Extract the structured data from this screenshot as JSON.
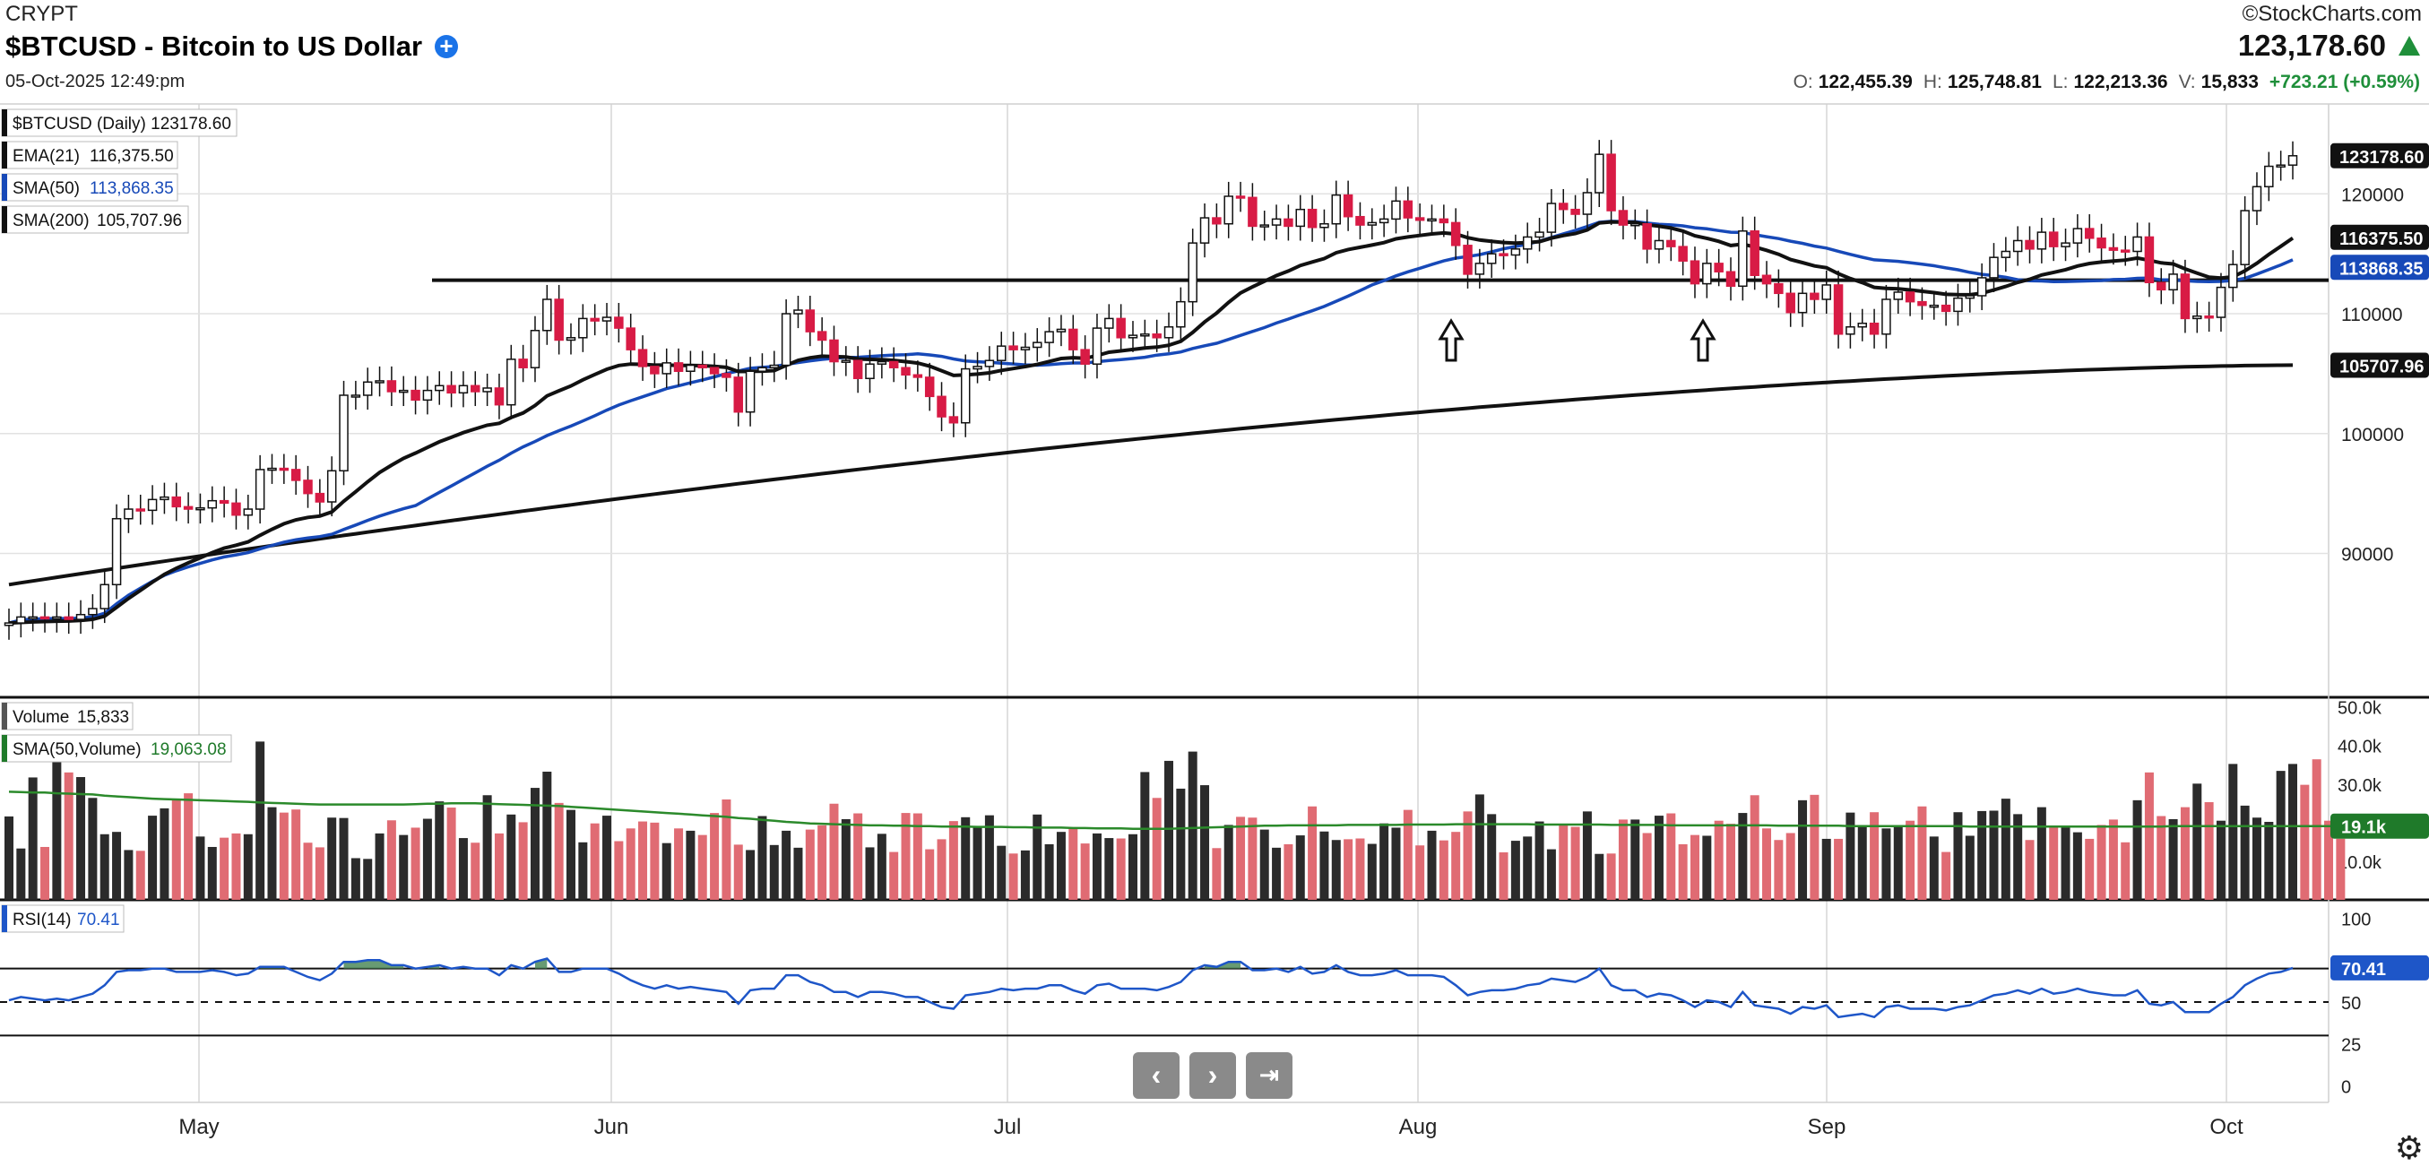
{
  "header": {
    "exchange": "CRYPT",
    "title": "$BTCUSD - Bitcoin to US Dollar",
    "add_icon": "plus-circle-icon",
    "timestamp": "05-Oct-2025 12:49:pm",
    "brand": "©StockCharts.com",
    "last_price": "123,178.60",
    "ohlc": {
      "o_label": "O:",
      "o": "122,455.39",
      "h_label": "H:",
      "h": "125,748.81",
      "l_label": "L:",
      "l": "122,213.36",
      "v_label": "V:",
      "v": "15,833"
    },
    "change": "+723.21 (+0.59%)"
  },
  "colors": {
    "up": "#ffffff",
    "down": "#d81b45",
    "ema21": "#111111",
    "sma50": "#1749b8",
    "sma200": "#111111",
    "vol_up": "#2b2b2b",
    "vol_down": "#e06b73",
    "vol_sma": "#2b8a2b",
    "rsi": "#1e56c8"
  },
  "nav": {
    "back_icon": "chevron-left-icon",
    "forward_icon": "chevron-right-icon",
    "end_icon": "skip-to-end-icon",
    "settings_icon": "gear-icon"
  },
  "chart_data": {
    "type": "candlestick",
    "x_tick_labels": [
      "May",
      "Jun",
      "Jul",
      "Aug",
      "Sep",
      "Oct"
    ],
    "price_panel": {
      "legend": [
        {
          "label": "$BTCUSD (Daily) 123178.60",
          "value": ""
        },
        {
          "label": "EMA(21)",
          "value": "116,375.50"
        },
        {
          "label": "SMA(50)",
          "value": "113,868.35"
        },
        {
          "label": "SMA(200)",
          "value": "105,707.96"
        }
      ],
      "y_ticks": [
        90000,
        100000,
        110000,
        120000
      ],
      "y_tick_labels": [
        "90000",
        "100000",
        "110000",
        "120000"
      ],
      "ylim": [
        78000,
        127500
      ],
      "right_tags": [
        {
          "value": 123178.6,
          "label": "123178.60"
        },
        {
          "value": 116375.5,
          "label": "116375.50"
        },
        {
          "value": 113868.35,
          "label": "113868.35"
        },
        {
          "value": 105707.96,
          "label": "105707.96"
        }
      ],
      "horizontal_line": 112800,
      "annotations": [
        "up-arrow",
        "up-arrow"
      ],
      "candles_close": [
        84200,
        84700,
        84700,
        84600,
        84700,
        84500,
        84900,
        85400,
        87400,
        92900,
        93700,
        93600,
        94500,
        94700,
        93900,
        93700,
        93800,
        94400,
        94200,
        93200,
        93700,
        97000,
        97100,
        97000,
        96100,
        95000,
        94300,
        96900,
        103200,
        103200,
        104300,
        104400,
        103500,
        103600,
        102800,
        103600,
        104000,
        103400,
        104000,
        103500,
        103800,
        102400,
        106200,
        105500,
        108600,
        111200,
        107800,
        108000,
        109600,
        109400,
        109700,
        108800,
        107000,
        105600,
        105000,
        105900,
        105200,
        105700,
        105500,
        105000,
        104700,
        101800,
        105200,
        105500,
        105700,
        110000,
        110300,
        108500,
        107800,
        106000,
        106100,
        104600,
        105800,
        106000,
        105500,
        104900,
        104700,
        103100,
        101400,
        100900,
        105400,
        105600,
        106100,
        107300,
        107000,
        107200,
        107600,
        108500,
        108700,
        107000,
        105800,
        108800,
        109600,
        108000,
        108200,
        108300,
        108000,
        108900,
        111000,
        115900,
        118000,
        117500,
        119800,
        119700,
        117300,
        117400,
        117900,
        117300,
        118700,
        117200,
        117500,
        119900,
        118100,
        117400,
        117600,
        117900,
        119400,
        118000,
        117800,
        117900,
        117600,
        115700,
        113300,
        114200,
        115000,
        114900,
        115400,
        116400,
        116800,
        119200,
        118700,
        118300,
        120100,
        123300,
        118600,
        117400,
        117500,
        115400,
        116100,
        115600,
        114400,
        112500,
        114200,
        113500,
        112300,
        116900,
        113200,
        112500,
        111700,
        110100,
        111700,
        111200,
        112400,
        108300,
        108900,
        109200,
        108300,
        111200,
        111800,
        111000,
        110700,
        110700,
        110200,
        111300,
        111500,
        113000,
        114700,
        115200,
        116100,
        115400,
        116800,
        115600,
        115900,
        117100,
        116300,
        115500,
        115300,
        115200,
        116400,
        112600,
        112000,
        113300,
        109600,
        109800,
        109700,
        112200,
        114100,
        118600,
        120600,
        122300,
        122400,
        123179
      ],
      "ema21_visible": true,
      "sma50_visible": true,
      "sma200_visible": true
    },
    "volume_panel": {
      "legend": [
        {
          "label": "Volume",
          "value": "15,833"
        },
        {
          "label": "SMA(50,Volume)",
          "value": "19,063.08"
        }
      ],
      "y_tick_labels": [
        "10.0k",
        "20.0k",
        "30.0k",
        "40.0k",
        "50.0k"
      ],
      "y_ticks": [
        10000,
        20000,
        30000,
        40000,
        50000
      ],
      "ylim": [
        0,
        52000
      ],
      "tag": {
        "value": 19100,
        "label": "19.1k"
      },
      "values": [
        21600,
        13300,
        31700,
        13700,
        37900,
        33000,
        31800,
        26400,
        17000,
        17600,
        12900,
        12700,
        21800,
        23700,
        26200,
        27600,
        16400,
        13700,
        16100,
        17200,
        17000,
        41000,
        24000,
        22600,
        23400,
        14800,
        13600,
        21300,
        21200,
        10800,
        10600,
        17200,
        20600,
        16800,
        18700,
        21000,
        25500,
        23900,
        16000,
        14800,
        27100,
        17200,
        22100,
        20100,
        29000,
        33200,
        25100,
        23300,
        14900,
        19800,
        21800,
        15200,
        18500,
        20300,
        20000,
        14700,
        18500,
        17900,
        16800,
        22500,
        26000,
        14300,
        12900,
        21700,
        14200,
        17900,
        13500,
        18200,
        19300,
        24900,
        20900,
        22400,
        13600,
        17100,
        12400,
        22500,
        22400,
        13100,
        15700,
        20400,
        21400,
        18700,
        21900,
        14000,
        12000,
        12800,
        22100,
        14400,
        17600,
        18700,
        14600,
        17200,
        16000,
        15900,
        17000,
        33100,
        26400,
        36000,
        28800,
        38400,
        29700,
        13400,
        19400,
        21500,
        21300,
        18200,
        13500,
        14400,
        16700,
        24200,
        17700,
        15500,
        15700,
        15900,
        14500,
        19800,
        18700,
        23300,
        14100,
        17900,
        15400,
        17600,
        22900,
        27300,
        22200,
        12300,
        15300,
        16400,
        20300,
        13100,
        19500,
        18900,
        22900,
        11900,
        12000,
        20800,
        20800,
        17300,
        21800,
        22400,
        14400,
        16800,
        16600,
        20500,
        19700,
        22500,
        27100,
        18500,
        15500,
        17300,
        25800,
        27200,
        15800,
        15800,
        22600,
        19000,
        22700,
        18500,
        19100,
        20500,
        24200,
        16400,
        12400,
        22700,
        16600,
        23000,
        23100,
        26200,
        22200,
        15500,
        24000,
        18900,
        19000,
        17500,
        15800,
        19400,
        20800,
        14900,
        25800,
        33000,
        21700,
        20900,
        24000,
        30100,
        25300,
        20500,
        35200,
        24400,
        21300,
        20200,
        33400,
        35200,
        29800,
        36400,
        20500,
        15833
      ],
      "sma": [
        28000,
        27900,
        27800,
        27800,
        27600,
        27500,
        27400,
        27300,
        27000,
        26800,
        26600,
        26400,
        26200,
        26100,
        26000,
        25900,
        25800,
        25700,
        25600,
        25500,
        25400,
        25200,
        25100,
        25000,
        24900,
        24800,
        24700,
        24700,
        24700,
        24700,
        24700,
        24700,
        24700,
        24700,
        24800,
        24900,
        24900,
        25000,
        25000,
        25000,
        24900,
        24800,
        24700,
        24600,
        24500,
        24400,
        24300,
        24100,
        23900,
        23700,
        23500,
        23300,
        23100,
        22900,
        22700,
        22500,
        22300,
        22100,
        21900,
        21700,
        21500,
        21200,
        21000,
        20700,
        20500,
        20200,
        20000,
        19800,
        19700,
        19600,
        19500,
        19400,
        19300,
        19300,
        19200,
        19200,
        19100,
        19100,
        19000,
        19000,
        19000,
        18900,
        18900,
        18900,
        18800,
        18800,
        18700,
        18700,
        18700,
        18600,
        18600,
        18500,
        18500,
        18500,
        18400,
        18400,
        18400,
        18400,
        18500,
        18600,
        18700,
        18800,
        18900,
        19000,
        19100,
        19200,
        19200,
        19300,
        19300,
        19300,
        19300,
        19300,
        19400,
        19400,
        19400,
        19400,
        19400,
        19500,
        19500,
        19500,
        19500,
        19600,
        19600,
        19600,
        19600,
        19600,
        19600,
        19600,
        19500,
        19500,
        19500,
        19500,
        19500,
        19500,
        19400,
        19400,
        19400,
        19400,
        19400,
        19300,
        19300,
        19300,
        19300,
        19300,
        19300,
        19300,
        19300,
        19300,
        19200,
        19200,
        19200,
        19200,
        19200,
        19200,
        19100,
        19100,
        19100,
        19100,
        19100,
        19100,
        19100,
        19100,
        19100,
        19100,
        19000,
        19000,
        19000,
        19000,
        19000,
        19000,
        19000,
        19000,
        19000,
        19000,
        19000,
        19000,
        19000,
        19000,
        19000,
        19000,
        19000,
        19100,
        19100,
        19100,
        19100,
        19100,
        19100,
        19100,
        19100,
        19100,
        19100,
        19100,
        19100,
        19100,
        19100,
        19063
      ]
    },
    "rsi_panel": {
      "legend": [
        {
          "label": "RSI(14)",
          "value": "70.41"
        }
      ],
      "y_ticks": [
        0,
        25,
        50,
        70,
        100
      ],
      "y_tick_labels": [
        "0",
        "25",
        "50",
        "70",
        "100"
      ],
      "ylim": [
        -10,
        110
      ],
      "tag": {
        "value": 70.41,
        "label": "70.41"
      },
      "values": [
        51,
        53,
        52,
        51,
        52,
        51,
        53,
        55,
        60,
        68,
        69,
        69,
        70,
        70,
        68,
        68,
        68,
        69,
        68,
        66,
        67,
        71,
        71,
        71,
        68,
        65,
        63,
        67,
        74,
        74,
        75,
        75,
        72,
        72,
        70,
        71,
        72,
        70,
        71,
        70,
        70,
        66,
        72,
        70,
        74,
        76,
        68,
        68,
        70,
        70,
        70,
        67,
        63,
        60,
        58,
        60,
        58,
        59,
        58,
        57,
        56,
        49,
        57,
        58,
        58,
        66,
        66,
        62,
        60,
        56,
        56,
        53,
        56,
        56,
        55,
        53,
        53,
        50,
        47,
        46,
        54,
        55,
        56,
        58,
        57,
        58,
        58,
        60,
        60,
        57,
        55,
        60,
        61,
        58,
        58,
        58,
        57,
        59,
        62,
        69,
        72,
        71,
        74,
        74,
        69,
        69,
        70,
        68,
        71,
        67,
        68,
        72,
        68,
        66,
        66,
        67,
        69,
        66,
        66,
        66,
        65,
        60,
        54,
        56,
        57,
        57,
        58,
        60,
        61,
        64,
        63,
        62,
        65,
        70,
        60,
        57,
        57,
        53,
        55,
        54,
        51,
        47,
        51,
        50,
        47,
        56,
        48,
        47,
        46,
        43,
        47,
        46,
        48,
        41,
        42,
        43,
        41,
        47,
        48,
        46,
        46,
        46,
        45,
        47,
        48,
        51,
        54,
        55,
        57,
        55,
        58,
        55,
        56,
        58,
        56,
        55,
        54,
        54,
        57,
        49,
        48,
        50,
        44,
        44,
        44,
        49,
        53,
        60,
        64,
        67,
        68,
        70.41
      ]
    }
  }
}
